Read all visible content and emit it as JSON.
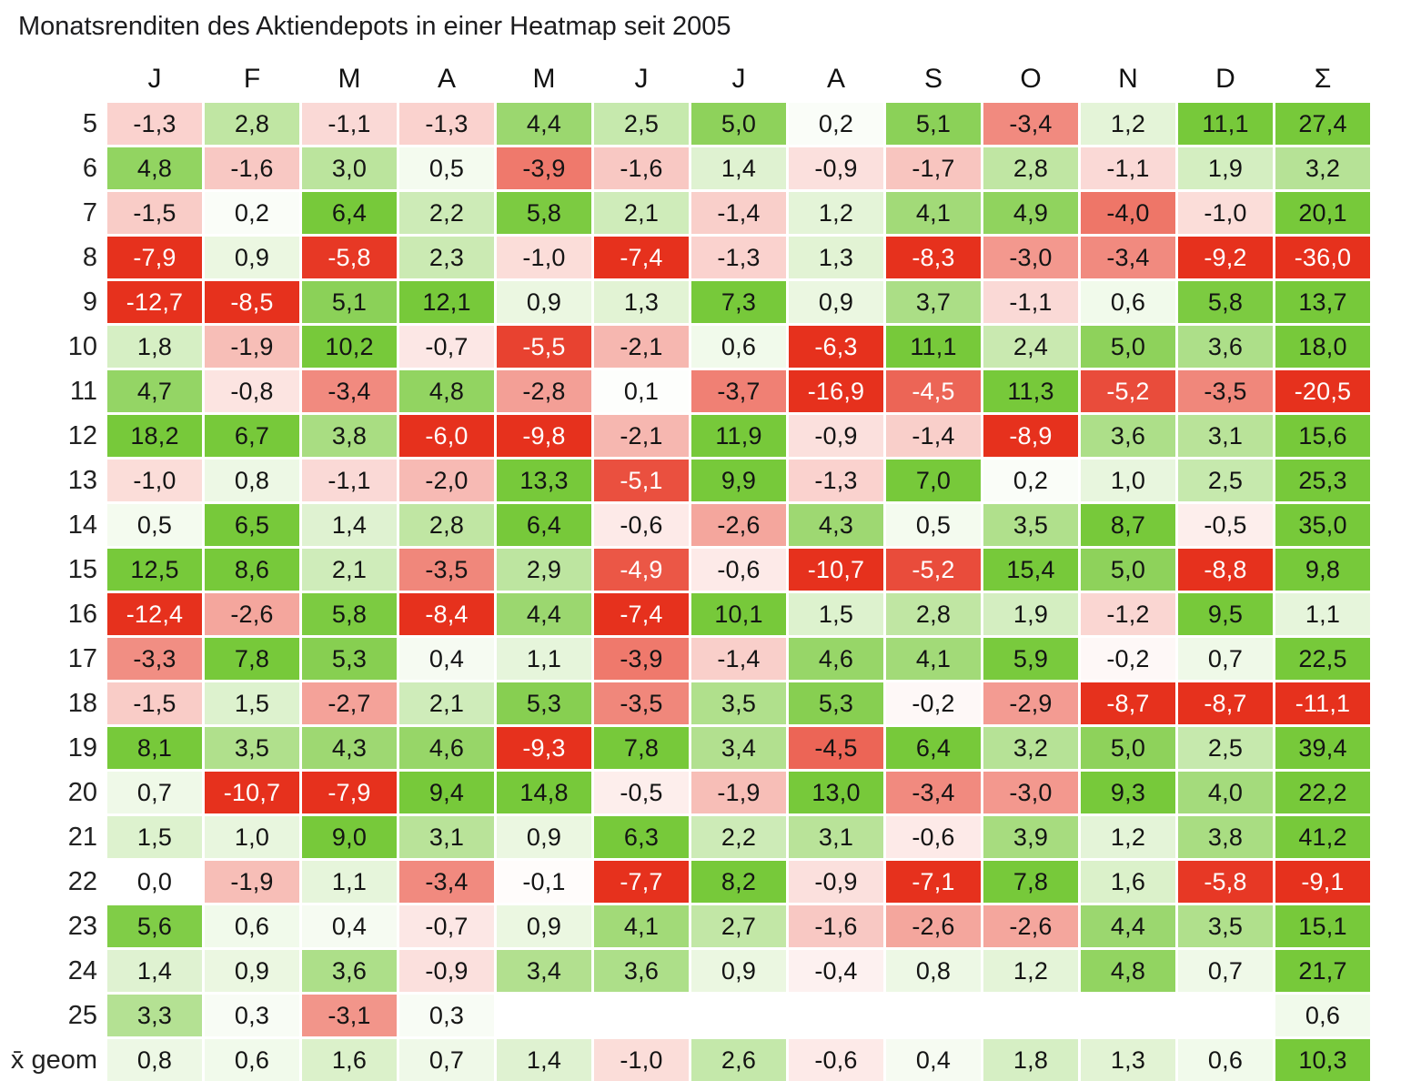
{
  "title": "Monatsrenditen des Aktiendepots in einer Heatmap seit 2005",
  "chart_data": {
    "type": "heatmap",
    "title": "Monatsrenditen des Aktiendepots in einer Heatmap seit 2005",
    "unit": "percent, comma decimal separator",
    "columns": [
      "J",
      "F",
      "M",
      "A",
      "M",
      "J",
      "J",
      "A",
      "S",
      "O",
      "N",
      "D",
      "Σ"
    ],
    "rows": [
      {
        "label": "5",
        "values": [
          "-1,3",
          "2,8",
          "-1,1",
          "-1,3",
          "4,4",
          "2,5",
          "5,0",
          "0,2",
          "5,1",
          "-3,4",
          "1,2",
          "11,1",
          "27,4"
        ]
      },
      {
        "label": "6",
        "values": [
          "4,8",
          "-1,6",
          "3,0",
          "0,5",
          "-3,9",
          "-1,6",
          "1,4",
          "-0,9",
          "-1,7",
          "2,8",
          "-1,1",
          "1,9",
          "3,2"
        ]
      },
      {
        "label": "7",
        "values": [
          "-1,5",
          "0,2",
          "6,4",
          "2,2",
          "5,8",
          "2,1",
          "-1,4",
          "1,2",
          "4,1",
          "4,9",
          "-4,0",
          "-1,0",
          "20,1"
        ]
      },
      {
        "label": "8",
        "values": [
          "-7,9",
          "0,9",
          "-5,8",
          "2,3",
          "-1,0",
          "-7,4",
          "-1,3",
          "1,3",
          "-8,3",
          "-3,0",
          "-3,4",
          "-9,2",
          "-36,0"
        ]
      },
      {
        "label": "9",
        "values": [
          "-12,7",
          "-8,5",
          "5,1",
          "12,1",
          "0,9",
          "1,3",
          "7,3",
          "0,9",
          "3,7",
          "-1,1",
          "0,6",
          "5,8",
          "13,7"
        ]
      },
      {
        "label": "10",
        "values": [
          "1,8",
          "-1,9",
          "10,2",
          "-0,7",
          "-5,5",
          "-2,1",
          "0,6",
          "-6,3",
          "11,1",
          "2,4",
          "5,0",
          "3,6",
          "18,0"
        ]
      },
      {
        "label": "11",
        "values": [
          "4,7",
          "-0,8",
          "-3,4",
          "4,8",
          "-2,8",
          "0,1",
          "-3,7",
          "-16,9",
          "-4,5",
          "11,3",
          "-5,2",
          "-3,5",
          "-20,5"
        ]
      },
      {
        "label": "12",
        "values": [
          "18,2",
          "6,7",
          "3,8",
          "-6,0",
          "-9,8",
          "-2,1",
          "11,9",
          "-0,9",
          "-1,4",
          "-8,9",
          "3,6",
          "3,1",
          "15,6"
        ]
      },
      {
        "label": "13",
        "values": [
          "-1,0",
          "0,8",
          "-1,1",
          "-2,0",
          "13,3",
          "-5,1",
          "9,9",
          "-1,3",
          "7,0",
          "0,2",
          "1,0",
          "2,5",
          "25,3"
        ]
      },
      {
        "label": "14",
        "values": [
          "0,5",
          "6,5",
          "1,4",
          "2,8",
          "6,4",
          "-0,6",
          "-2,6",
          "4,3",
          "0,5",
          "3,5",
          "8,7",
          "-0,5",
          "35,0"
        ]
      },
      {
        "label": "15",
        "values": [
          "12,5",
          "8,6",
          "2,1",
          "-3,5",
          "2,9",
          "-4,9",
          "-0,6",
          "-10,7",
          "-5,2",
          "15,4",
          "5,0",
          "-8,8",
          "9,8"
        ]
      },
      {
        "label": "16",
        "values": [
          "-12,4",
          "-2,6",
          "5,8",
          "-8,4",
          "4,4",
          "-7,4",
          "10,1",
          "1,5",
          "2,8",
          "1,9",
          "-1,2",
          "9,5",
          "1,1"
        ]
      },
      {
        "label": "17",
        "values": [
          "-3,3",
          "7,8",
          "5,3",
          "0,4",
          "1,1",
          "-3,9",
          "-1,4",
          "4,6",
          "4,1",
          "5,9",
          "-0,2",
          "0,7",
          "22,5"
        ]
      },
      {
        "label": "18",
        "values": [
          "-1,5",
          "1,5",
          "-2,7",
          "2,1",
          "5,3",
          "-3,5",
          "3,5",
          "5,3",
          "-0,2",
          "-2,9",
          "-8,7",
          "-8,7",
          "-11,1"
        ]
      },
      {
        "label": "19",
        "values": [
          "8,1",
          "3,5",
          "4,3",
          "4,6",
          "-9,3",
          "7,8",
          "3,4",
          "-4,5",
          "6,4",
          "3,2",
          "5,0",
          "2,5",
          "39,4"
        ]
      },
      {
        "label": "20",
        "values": [
          "0,7",
          "-10,7",
          "-7,9",
          "9,4",
          "14,8",
          "-0,5",
          "-1,9",
          "13,0",
          "-3,4",
          "-3,0",
          "9,3",
          "4,0",
          "22,2"
        ]
      },
      {
        "label": "21",
        "values": [
          "1,5",
          "1,0",
          "9,0",
          "3,1",
          "0,9",
          "6,3",
          "2,2",
          "3,1",
          "-0,6",
          "3,9",
          "1,2",
          "3,8",
          "41,2"
        ]
      },
      {
        "label": "22",
        "values": [
          "0,0",
          "-1,9",
          "1,1",
          "-3,4",
          "-0,1",
          "-7,7",
          "8,2",
          "-0,9",
          "-7,1",
          "7,8",
          "1,6",
          "-5,8",
          "-9,1"
        ]
      },
      {
        "label": "23",
        "values": [
          "5,6",
          "0,6",
          "0,4",
          "-0,7",
          "0,9",
          "4,1",
          "2,7",
          "-1,6",
          "-2,6",
          "-2,6",
          "4,4",
          "3,5",
          "15,1"
        ]
      },
      {
        "label": "24",
        "values": [
          "1,4",
          "0,9",
          "3,6",
          "-0,9",
          "3,4",
          "3,6",
          "0,9",
          "-0,4",
          "0,8",
          "1,2",
          "4,8",
          "0,7",
          "21,7"
        ]
      },
      {
        "label": "25",
        "values": [
          "3,3",
          "0,3",
          "-3,1",
          "0,3",
          "",
          "",
          "",
          "",
          "",
          "",
          "",
          "",
          "0,6"
        ]
      },
      {
        "label": "x̄ geom",
        "values": [
          "0,8",
          "0,6",
          "1,6",
          "0,7",
          "1,4",
          "-1,0",
          "2,6",
          "-0,6",
          "0,4",
          "1,8",
          "1,3",
          "0,6",
          "10,3"
        ]
      }
    ],
    "color_scale": {
      "negative": "#e6311d",
      "neutral": "#ffffff",
      "positive": "#77c93a",
      "clamp_abs": 6,
      "white_text_threshold": -4.5
    },
    "text_color": "#141414",
    "white_text_color": "#ffffff",
    "legend_position": "none",
    "grid": false
  }
}
